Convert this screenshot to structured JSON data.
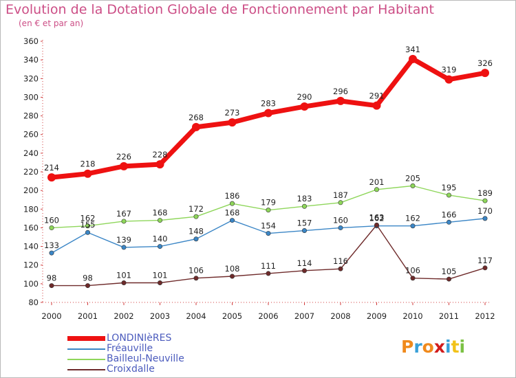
{
  "title": "Evolution de la Dotation Globale de Fonctionnement par Habitant",
  "subtitle": "(en € et par an)",
  "logo": {
    "text": "Proxiti"
  },
  "chart_data": {
    "type": "line",
    "title": "Evolution de la Dotation Globale de Fonctionnement par Habitant",
    "subtitle": "(en € et par an)",
    "xlabel": "",
    "ylabel": "",
    "ylim": [
      80,
      360
    ],
    "ytick_step": 20,
    "grid": false,
    "legend_position": "bottom-left",
    "categories": [
      "2000",
      "2001",
      "2002",
      "2003",
      "2004",
      "2005",
      "2006",
      "2007",
      "2008",
      "2009",
      "2010",
      "2011",
      "2012"
    ],
    "series": [
      {
        "name": "LONDINIèRES",
        "color": "#ee1111",
        "values": [
          214,
          218,
          226,
          228,
          268,
          273,
          283,
          290,
          296,
          291,
          341,
          319,
          326
        ]
      },
      {
        "name": "Fréauville",
        "color": "#3b86c6",
        "values": [
          133,
          155,
          139,
          140,
          148,
          168,
          154,
          157,
          160,
          162,
          162,
          166,
          170
        ]
      },
      {
        "name": "Bailleul-Neuville",
        "color": "#8ed65a",
        "values": [
          160,
          162,
          167,
          168,
          172,
          186,
          179,
          183,
          187,
          201,
          205,
          195,
          189
        ]
      },
      {
        "name": "Croixdalle",
        "color": "#6e2a2a",
        "values": [
          98,
          98,
          101,
          101,
          106,
          108,
          111,
          114,
          116,
          163,
          106,
          105,
          117
        ]
      }
    ]
  }
}
